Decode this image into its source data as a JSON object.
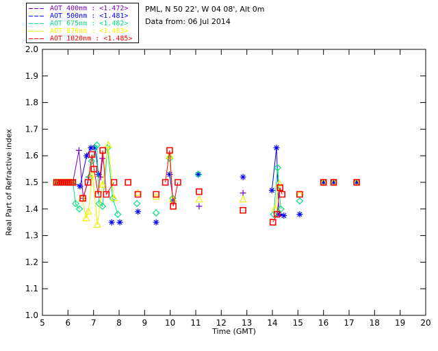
{
  "header": {
    "location_line": "PML, N 50 22', W 04 08', Alt 0m",
    "data_from_line": "Data from: 06 Jul 2014"
  },
  "legend": {
    "items": [
      {
        "label": "AOT  400nm : <1.472>",
        "color": "#7a00c8"
      },
      {
        "label": "AOT  500nm : <1.481>",
        "color": "#0000ff"
      },
      {
        "label": "AOT  675nm : <1.482>",
        "color": "#00e080"
      },
      {
        "label": "AOT  870nm : <1.483>",
        "color": "#f0f000"
      },
      {
        "label": "AOT 1020nm : <1.485>",
        "color": "#ff0000"
      }
    ]
  },
  "chart_data": {
    "type": "line",
    "title": "",
    "xlabel": "Time (GMT)",
    "ylabel": "Real Part of Refractive index",
    "xlim": [
      5,
      20
    ],
    "ylim": [
      1.0,
      2.0
    ],
    "xticks": [
      5,
      6,
      7,
      8,
      9,
      10,
      11,
      12,
      13,
      14,
      15,
      16,
      17,
      18,
      19,
      20
    ],
    "ytick_labels": [
      "1.0",
      "1.1",
      "1.2",
      "1.3",
      "1.4",
      "1.5",
      "1.6",
      "1.7",
      "1.8",
      "1.9",
      "2.0"
    ],
    "grid": false,
    "legend_position": "outside-top-left",
    "line_gap_threshold_hours": 0.3,
    "series": [
      {
        "name": "AOT 400nm",
        "mean_label": "<1.472>",
        "color": "#7a00c8",
        "marker": "plus",
        "points": [
          [
            5.55,
            1.5
          ],
          [
            5.63,
            1.5
          ],
          [
            5.71,
            1.5
          ],
          [
            5.79,
            1.5
          ],
          [
            5.87,
            1.5
          ],
          [
            5.95,
            1.5
          ],
          [
            6.03,
            1.5
          ],
          [
            6.11,
            1.5
          ],
          [
            6.19,
            1.5
          ],
          [
            6.43,
            1.62
          ],
          [
            6.6,
            1.44
          ],
          [
            6.82,
            1.52
          ],
          [
            7.28,
            1.52
          ],
          [
            7.35,
            1.59
          ],
          [
            11.13,
            1.41
          ],
          [
            12.85,
            1.46
          ],
          [
            16.0,
            1.5
          ],
          [
            16.4,
            1.5
          ],
          [
            17.3,
            1.5
          ]
        ]
      },
      {
        "name": "AOT 500nm",
        "mean_label": "<1.481>",
        "color": "#0000ff",
        "marker": "asterisk",
        "points": [
          [
            5.55,
            1.5
          ],
          [
            5.63,
            1.5
          ],
          [
            5.71,
            1.5
          ],
          [
            5.79,
            1.5
          ],
          [
            5.87,
            1.5
          ],
          [
            5.95,
            1.5
          ],
          [
            6.03,
            1.5
          ],
          [
            6.11,
            1.5
          ],
          [
            6.19,
            1.5
          ],
          [
            6.47,
            1.485
          ],
          [
            6.73,
            1.6
          ],
          [
            6.9,
            1.63
          ],
          [
            7.06,
            1.63
          ],
          [
            7.2,
            1.53
          ],
          [
            7.71,
            1.35
          ],
          [
            8.03,
            1.35
          ],
          [
            8.74,
            1.39
          ],
          [
            9.45,
            1.35
          ],
          [
            9.98,
            1.53
          ],
          [
            10.12,
            1.43
          ],
          [
            11.1,
            1.53
          ],
          [
            12.85,
            1.52
          ],
          [
            13.98,
            1.47
          ],
          [
            14.16,
            1.63
          ],
          [
            14.26,
            1.38
          ],
          [
            14.45,
            1.375
          ],
          [
            15.07,
            1.38
          ],
          [
            16.0,
            1.5
          ],
          [
            16.4,
            1.5
          ],
          [
            17.3,
            1.5
          ]
        ]
      },
      {
        "name": "AOT 675nm",
        "mean_label": "<1.482>",
        "color": "#00e080",
        "marker": "diamond",
        "points": [
          [
            5.55,
            1.5
          ],
          [
            5.63,
            1.5
          ],
          [
            5.71,
            1.5
          ],
          [
            5.79,
            1.5
          ],
          [
            5.87,
            1.5
          ],
          [
            5.95,
            1.5
          ],
          [
            6.03,
            1.5
          ],
          [
            6.11,
            1.5
          ],
          [
            6.19,
            1.5
          ],
          [
            6.3,
            1.42
          ],
          [
            6.45,
            1.4
          ],
          [
            6.85,
            1.52
          ],
          [
            6.93,
            1.58
          ],
          [
            7.13,
            1.64
          ],
          [
            7.22,
            1.42
          ],
          [
            7.35,
            1.41
          ],
          [
            7.55,
            1.63
          ],
          [
            7.75,
            1.44
          ],
          [
            7.95,
            1.38
          ],
          [
            8.7,
            1.42
          ],
          [
            9.45,
            1.385
          ],
          [
            9.98,
            1.59
          ],
          [
            10.1,
            1.44
          ],
          [
            11.1,
            1.53
          ],
          [
            14.05,
            1.38
          ],
          [
            14.2,
            1.555
          ],
          [
            14.33,
            1.4
          ],
          [
            15.07,
            1.43
          ],
          [
            16.0,
            1.5
          ],
          [
            16.4,
            1.5
          ],
          [
            17.3,
            1.5
          ]
        ]
      },
      {
        "name": "AOT 870nm",
        "mean_label": "<1.483>",
        "color": "#f0f000",
        "marker": "triangle",
        "points": [
          [
            5.55,
            1.5
          ],
          [
            5.63,
            1.5
          ],
          [
            5.71,
            1.5
          ],
          [
            5.79,
            1.5
          ],
          [
            5.87,
            1.5
          ],
          [
            5.95,
            1.5
          ],
          [
            6.03,
            1.5
          ],
          [
            6.11,
            1.5
          ],
          [
            6.19,
            1.5
          ],
          [
            6.55,
            1.44
          ],
          [
            6.71,
            1.365
          ],
          [
            6.8,
            1.39
          ],
          [
            6.96,
            1.53
          ],
          [
            7.15,
            1.34
          ],
          [
            7.35,
            1.49
          ],
          [
            7.58,
            1.64
          ],
          [
            7.8,
            1.44
          ],
          [
            8.72,
            1.46
          ],
          [
            9.45,
            1.445
          ],
          [
            9.98,
            1.6
          ],
          [
            10.1,
            1.435
          ],
          [
            11.13,
            1.435
          ],
          [
            12.85,
            1.435
          ],
          [
            14.1,
            1.4
          ],
          [
            14.27,
            1.495
          ],
          [
            15.07,
            1.455
          ],
          [
            16.0,
            1.5
          ],
          [
            16.4,
            1.5
          ],
          [
            17.3,
            1.5
          ]
        ]
      },
      {
        "name": "AOT 1020nm",
        "mean_label": "<1.485>",
        "color": "#ff0000",
        "marker": "square",
        "points": [
          [
            5.55,
            1.5
          ],
          [
            5.63,
            1.5
          ],
          [
            5.71,
            1.5
          ],
          [
            5.79,
            1.5
          ],
          [
            5.87,
            1.5
          ],
          [
            5.95,
            1.5
          ],
          [
            6.03,
            1.5
          ],
          [
            6.11,
            1.5
          ],
          [
            6.19,
            1.5
          ],
          [
            6.58,
            1.44
          ],
          [
            6.78,
            1.5
          ],
          [
            6.94,
            1.605
          ],
          [
            7.02,
            1.55
          ],
          [
            7.18,
            1.455
          ],
          [
            7.36,
            1.62
          ],
          [
            7.5,
            1.455
          ],
          [
            7.8,
            1.5
          ],
          [
            8.35,
            1.5
          ],
          [
            8.74,
            1.455
          ],
          [
            9.45,
            1.455
          ],
          [
            9.81,
            1.5
          ],
          [
            9.98,
            1.62
          ],
          [
            10.12,
            1.41
          ],
          [
            10.3,
            1.5
          ],
          [
            11.13,
            1.465
          ],
          [
            12.85,
            1.395
          ],
          [
            14.02,
            1.35
          ],
          [
            14.18,
            1.38
          ],
          [
            14.3,
            1.48
          ],
          [
            14.38,
            1.455
          ],
          [
            15.07,
            1.455
          ],
          [
            16.0,
            1.5
          ],
          [
            16.4,
            1.5
          ],
          [
            17.3,
            1.5
          ]
        ]
      }
    ]
  }
}
